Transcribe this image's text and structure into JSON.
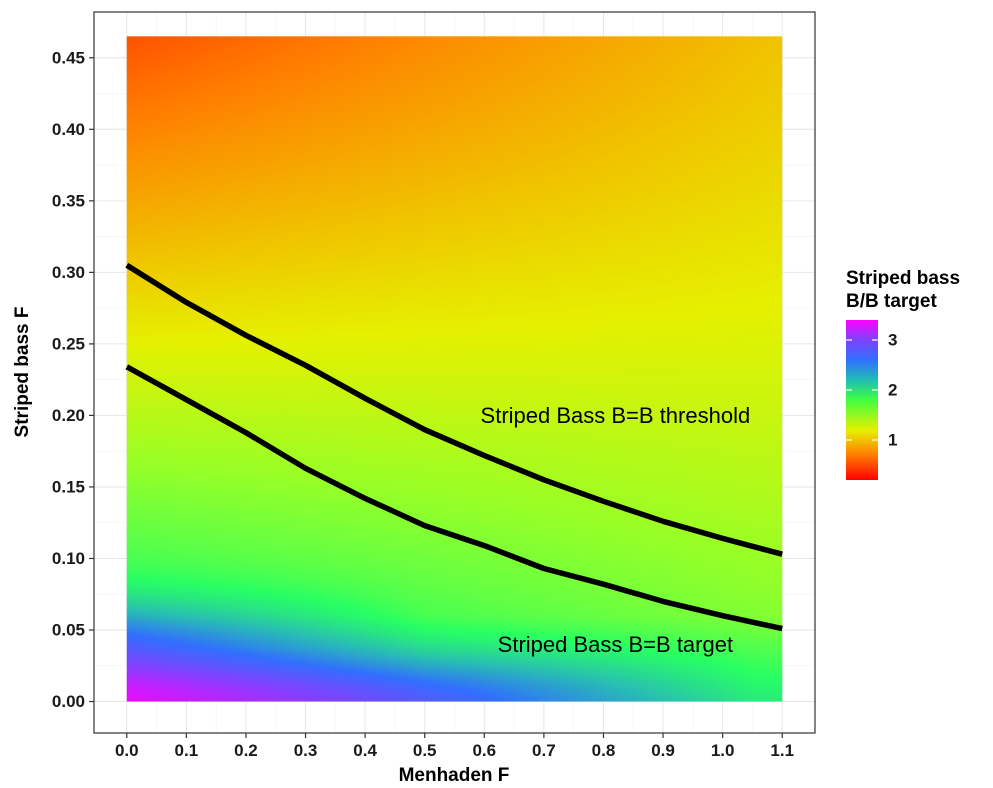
{
  "chart_data": {
    "type": "heatmap",
    "title": "",
    "xlabel": "Menhaden F",
    "ylabel": "Striped bass F",
    "xlim": [
      -0.055,
      1.155
    ],
    "ylim": [
      -0.022,
      0.482
    ],
    "x_ticks": [
      "0.0",
      "0.1",
      "0.2",
      "0.3",
      "0.4",
      "0.5",
      "0.6",
      "0.7",
      "0.8",
      "0.9",
      "1.0",
      "1.1"
    ],
    "y_ticks": [
      "0.00",
      "0.05",
      "0.10",
      "0.15",
      "0.20",
      "0.25",
      "0.30",
      "0.35",
      "0.40",
      "0.45"
    ],
    "grid": true,
    "fill_extent": {
      "x": [
        0.0,
        1.1
      ],
      "y": [
        0.0,
        0.465
      ]
    },
    "fill_variable": "Striped bass B/B target",
    "fill_range": [
      0.2,
      3.4
    ],
    "legend": {
      "title_lines": [
        "Striped bass",
        "B/B target"
      ],
      "labels": [
        "1",
        "2",
        "3"
      ],
      "values": [
        1,
        2,
        3
      ],
      "placement": "right",
      "colors": [
        "#ff0000",
        "#ffff00",
        "#00ff80",
        "#0080ff",
        "#ff00ff"
      ]
    },
    "contour_lines": [
      {
        "label": "Striped Bass B=B threshold",
        "level": 0.75,
        "points": [
          [
            0.0,
            0.305
          ],
          [
            0.1,
            0.279
          ],
          [
            0.2,
            0.256
          ],
          [
            0.3,
            0.235
          ],
          [
            0.4,
            0.212
          ],
          [
            0.5,
            0.19
          ],
          [
            0.6,
            0.172
          ],
          [
            0.7,
            0.155
          ],
          [
            0.8,
            0.14
          ],
          [
            0.9,
            0.126
          ],
          [
            1.0,
            0.114
          ],
          [
            1.1,
            0.103
          ]
        ]
      },
      {
        "label": "Striped Bass B=B target",
        "level": 1.0,
        "points": [
          [
            0.0,
            0.234
          ],
          [
            0.1,
            0.211
          ],
          [
            0.2,
            0.188
          ],
          [
            0.3,
            0.163
          ],
          [
            0.4,
            0.142
          ],
          [
            0.5,
            0.123
          ],
          [
            0.6,
            0.109
          ],
          [
            0.7,
            0.093
          ],
          [
            0.8,
            0.082
          ],
          [
            0.9,
            0.07
          ],
          [
            1.0,
            0.06
          ],
          [
            1.1,
            0.051
          ]
        ]
      }
    ],
    "annotations": [
      {
        "text": "Striped Bass B=B threshold",
        "x": 0.82,
        "y": 0.2
      },
      {
        "text": "Striped Bass B=B target",
        "x": 0.82,
        "y": 0.04
      }
    ]
  }
}
